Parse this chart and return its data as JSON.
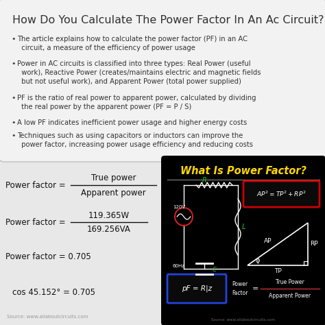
{
  "title": "How Do You Calculate The Power Factor In An Ac Circuit?",
  "title_fontsize": 11.5,
  "bullet_points": [
    "The article explains how to calculate the power factor (PF) in an AC\n  circuit, a measure of the efficiency of power usage",
    "Power in AC circuits is classified into three types: Real Power (useful\n  work), Reactive Power (creates/maintains electric and magnetic fields\n  but not useful work), and Apparent Power (total power supplied)",
    "PF is the ratio of real power to apparent power, calculated by dividing\n  the real power by the apparent power (PF = P / S)",
    "A low PF indicates inefficient power usage and higher energy costs",
    "Techniques such as using capacitors or inductors can improve the\n  power factor, increasing power usage efficiency and reducing costs"
  ],
  "bullet_fontsize": 7.2,
  "formula1_label": "Power factor =",
  "formula1_num": "True power",
  "formula1_den": "Apparent power",
  "formula2_label": "Power factor =",
  "formula2_num": "119.365W",
  "formula2_den": "169.256VA",
  "formula3": "Power factor = 0.705",
  "formula4": "cos 45.152° = 0.705",
  "source_left": "Source: www.allaboutcircuits.com",
  "dark_box_title": "What Is Power Factor?",
  "dark_box_bg": "#000000",
  "dark_box_title_color": "#FFD700",
  "bg_color": "#d0d0d0",
  "top_box_bg": "#f2f2f2",
  "top_box_edge": "#c0c0c0"
}
